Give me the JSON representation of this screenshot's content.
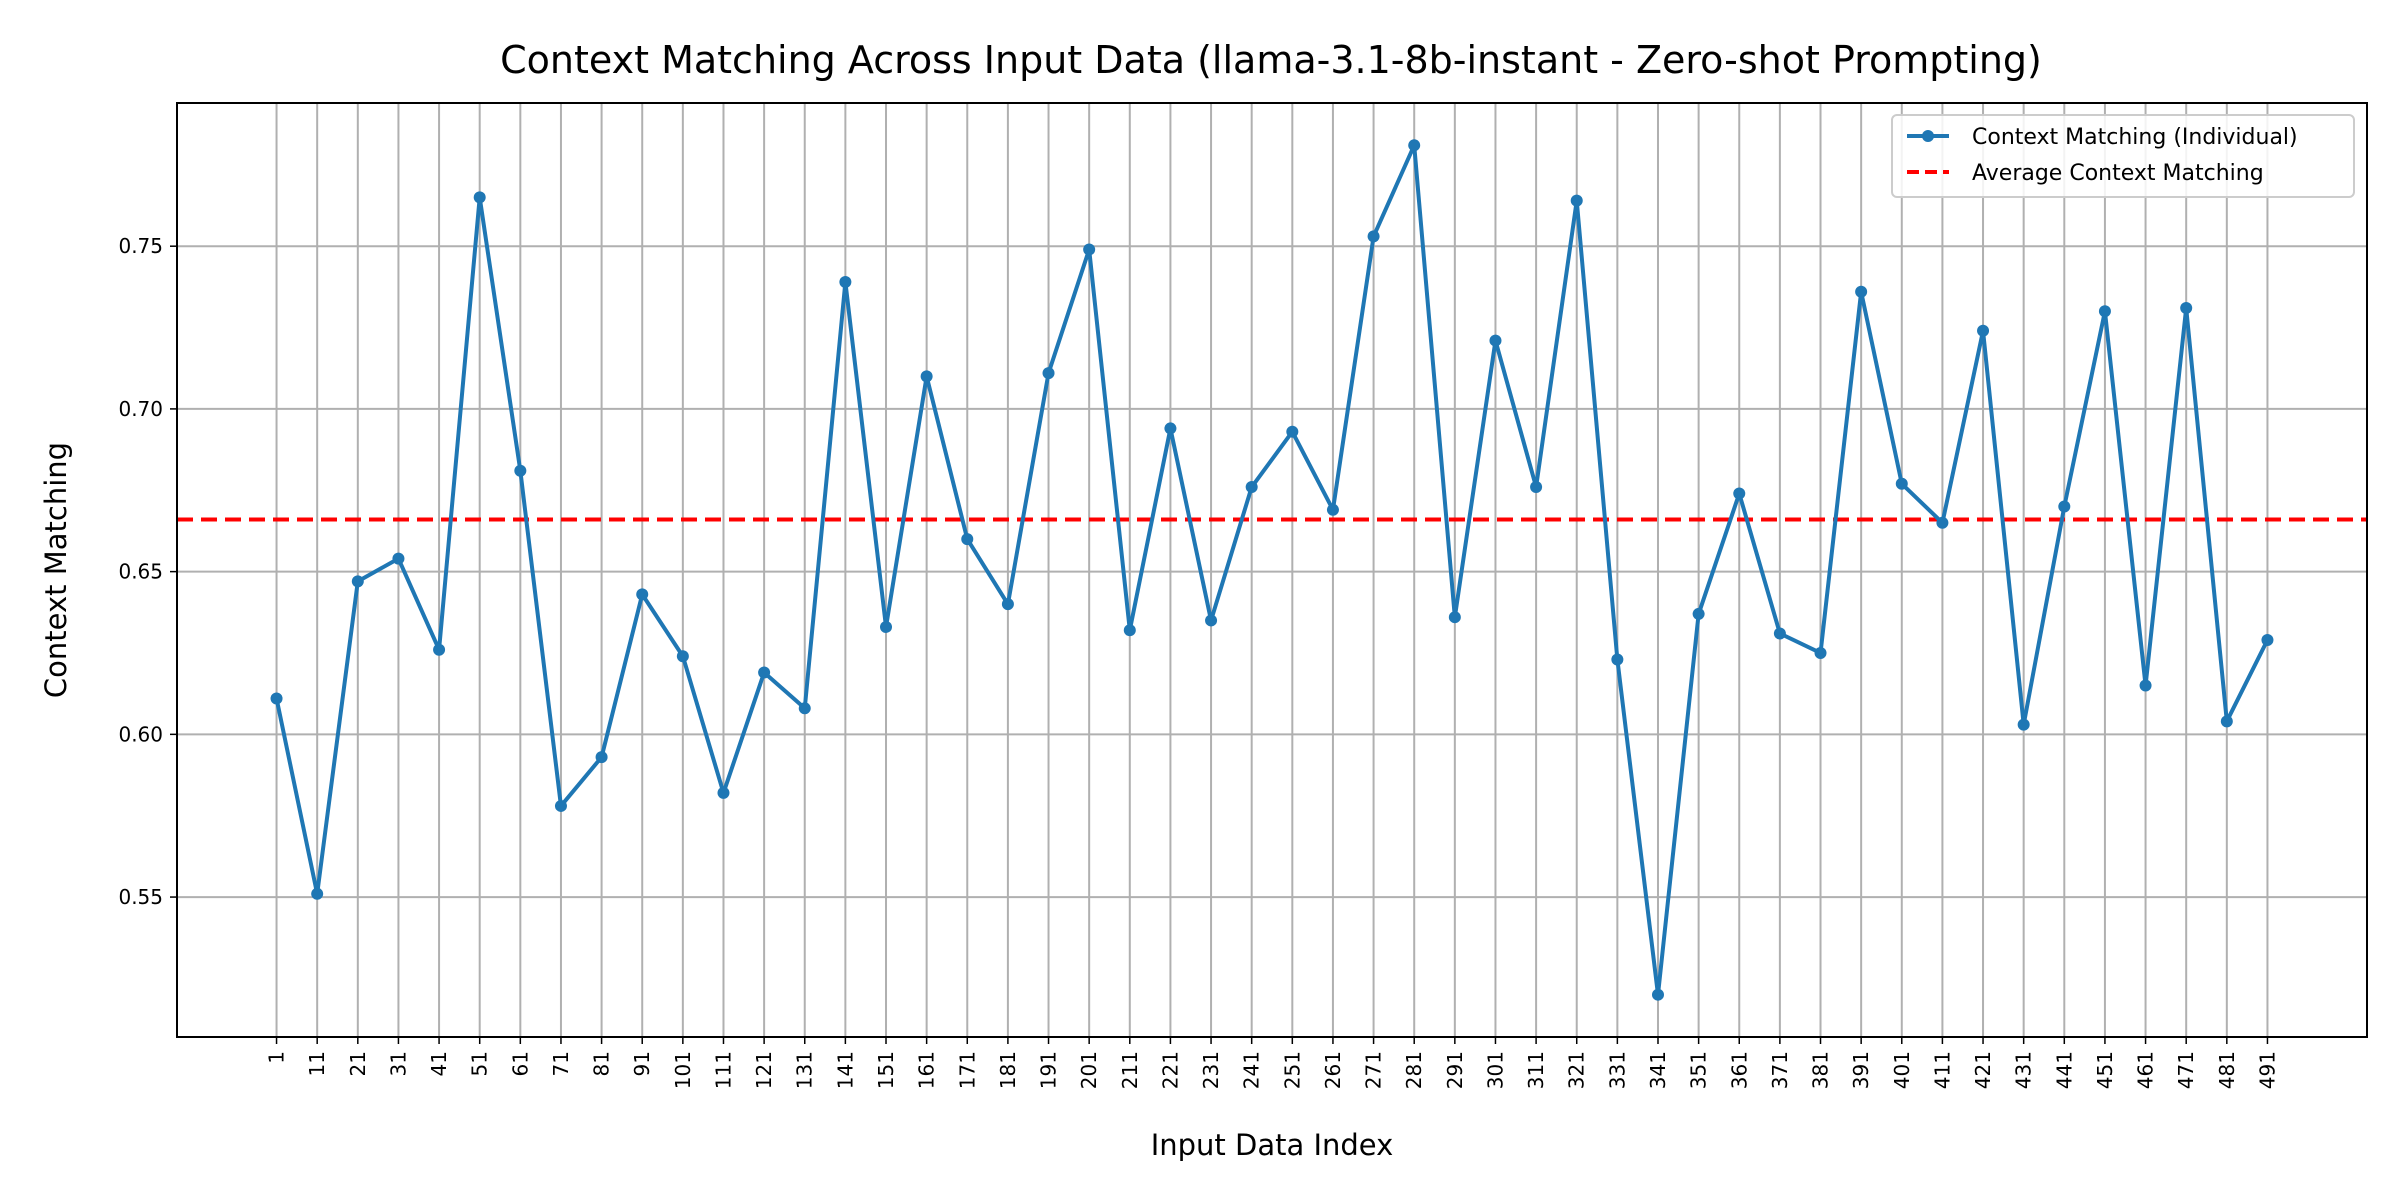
{
  "chart_data": {
    "type": "line",
    "title": "Context Matching Across Input Data (llama-3.1-8b-instant - Zero-shot Prompting)",
    "xlabel": "Input Data Index",
    "ylabel": "Context Matching",
    "x": [
      1,
      11,
      21,
      31,
      41,
      51,
      61,
      71,
      81,
      91,
      101,
      111,
      121,
      131,
      141,
      151,
      161,
      171,
      181,
      191,
      201,
      211,
      221,
      231,
      241,
      251,
      261,
      271,
      281,
      291,
      301,
      311,
      321,
      331,
      341,
      351,
      361,
      371,
      381,
      391,
      401,
      411,
      421,
      431,
      441,
      451,
      461,
      471,
      481,
      491
    ],
    "series": [
      {
        "name": "Context Matching (Individual)",
        "color": "#1f77b4",
        "values": [
          0.611,
          0.551,
          0.647,
          0.654,
          0.626,
          0.765,
          0.681,
          0.578,
          0.593,
          0.643,
          0.624,
          0.582,
          0.619,
          0.608,
          0.739,
          0.633,
          0.71,
          0.66,
          0.64,
          0.711,
          0.749,
          0.632,
          0.694,
          0.635,
          0.676,
          0.693,
          0.669,
          0.753,
          0.781,
          0.636,
          0.721,
          0.676,
          0.764,
          0.623,
          0.52,
          0.637,
          0.674,
          0.631,
          0.625,
          0.736,
          0.677,
          0.665,
          0.724,
          0.603,
          0.67,
          0.73,
          0.615,
          0.731,
          0.604,
          0.629
        ]
      }
    ],
    "reference_line": {
      "name": "Average Context Matching",
      "color": "#ff0000",
      "value": 0.666
    },
    "xticks": [
      1,
      11,
      21,
      31,
      41,
      51,
      61,
      71,
      81,
      91,
      101,
      111,
      121,
      131,
      141,
      151,
      161,
      171,
      181,
      191,
      201,
      211,
      221,
      231,
      241,
      251,
      261,
      271,
      281,
      291,
      301,
      311,
      321,
      331,
      341,
      351,
      361,
      371,
      381,
      391,
      401,
      411,
      421,
      431,
      441,
      451,
      461,
      471,
      481,
      491
    ],
    "yticks": [
      "0.55",
      "0.60",
      "0.65",
      "0.70",
      "0.75"
    ],
    "xlim": [
      -23.5,
      515.5
    ],
    "ylim": [
      0.507,
      0.794
    ],
    "grid": true,
    "legend_position": "top-right"
  }
}
